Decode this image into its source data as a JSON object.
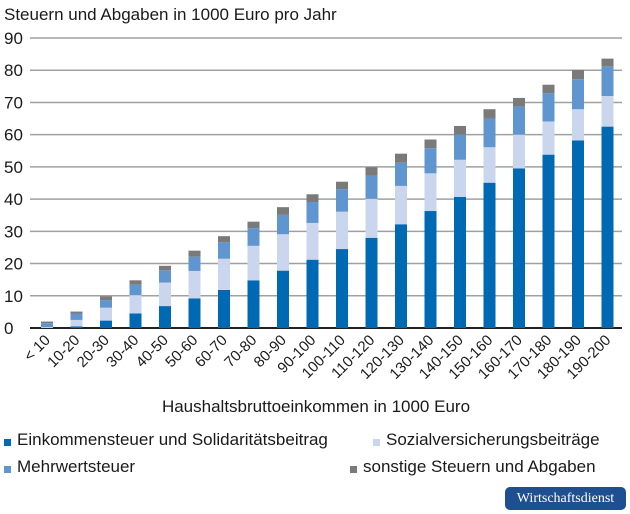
{
  "chart_data": {
    "type": "bar",
    "stacked": true,
    "title": "Steuern und Abgaben in 1000 Euro pro Jahr",
    "xlabel": "Haushaltsbruttoeinkommen in 1000 Euro",
    "ylabel": "",
    "ylim": [
      0,
      90
    ],
    "yticks": [
      0,
      10,
      20,
      30,
      40,
      50,
      60,
      70,
      80,
      90
    ],
    "grid": true,
    "legend_position": "bottom",
    "categories": [
      "< 10",
      "10-20",
      "20-30",
      "30-40",
      "40-50",
      "50-60",
      "60-70",
      "70-80",
      "80-90",
      "90-100",
      "100-110",
      "110-120",
      "120-130",
      "130-140",
      "140-150",
      "150-160",
      "160-170",
      "170-180",
      "180-190",
      "190-200"
    ],
    "series": [
      {
        "name": "Einkommensteuer und Solidaritätsbeitrag",
        "color": "#0069b4",
        "values": [
          0,
          0.5,
          2.3,
          4.5,
          6.8,
          9.2,
          11.8,
          14.8,
          17.8,
          21.2,
          24.5,
          28.0,
          32.2,
          36.3,
          40.7,
          45.1,
          49.5,
          53.8,
          58.2,
          62.5
        ]
      },
      {
        "name": "Sozialversicherungsbeiträge",
        "color": "#c9d6ee",
        "values": [
          0.3,
          2.0,
          4.0,
          5.7,
          7.3,
          8.5,
          9.7,
          10.7,
          11.3,
          11.4,
          11.6,
          12.1,
          11.9,
          11.7,
          11.5,
          11.0,
          10.5,
          10.3,
          9.7,
          9.5
        ]
      },
      {
        "name": "Mehrwertsteuer",
        "color": "#6096d0",
        "values": [
          1.2,
          2.0,
          2.3,
          3.2,
          3.8,
          4.4,
          5.1,
          5.5,
          6.0,
          6.5,
          7.0,
          7.2,
          7.2,
          7.8,
          7.8,
          8.9,
          8.7,
          8.8,
          9.3,
          9.2
        ]
      },
      {
        "name": "sonstige Steuern und Abgaben",
        "color": "#7a7a7a",
        "values": [
          0.5,
          0.6,
          1.2,
          1.4,
          1.4,
          1.9,
          1.9,
          2.0,
          2.4,
          2.4,
          2.3,
          2.6,
          2.8,
          2.7,
          2.7,
          2.9,
          2.7,
          2.6,
          2.9,
          2.4
        ]
      }
    ]
  },
  "badge": "Wirtschaftsdienst"
}
